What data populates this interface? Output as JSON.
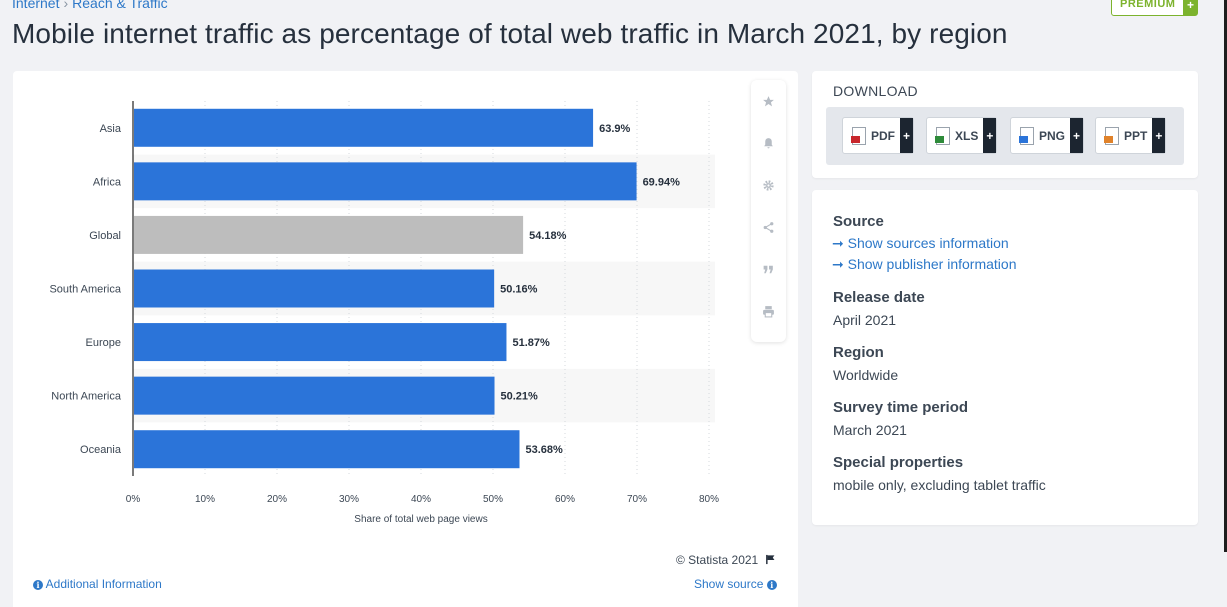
{
  "breadcrumb": {
    "first": "Internet",
    "second": "Reach & Traffic"
  },
  "premium": {
    "label": "PREMIUM",
    "plus": "+"
  },
  "title": "Mobile internet traffic as percentage of total web traffic in March 2021, by region",
  "toolbar": {
    "icons": [
      "star-icon",
      "bell-icon",
      "gear-icon",
      "share-icon",
      "quote-icon",
      "print-icon"
    ]
  },
  "chart_data": {
    "type": "bar",
    "orientation": "horizontal",
    "categories": [
      "Asia",
      "Africa",
      "Global",
      "South America",
      "Europe",
      "North America",
      "Oceania"
    ],
    "values": [
      63.9,
      69.94,
      54.18,
      50.16,
      51.87,
      50.21,
      53.68
    ],
    "data_labels": [
      "63.9%",
      "69.94%",
      "54.18%",
      "50.16%",
      "51.87%",
      "50.21%",
      "53.68%"
    ],
    "highlight": "Global",
    "colors": {
      "bar": "#2b74d9",
      "highlight": "#bdbdbd",
      "band": "#f7f7f7"
    },
    "xlim": [
      0,
      80
    ],
    "xticks": [
      0,
      10,
      20,
      30,
      40,
      50,
      60,
      70,
      80
    ],
    "xtick_labels": [
      "0%",
      "10%",
      "20%",
      "30%",
      "40%",
      "50%",
      "60%",
      "70%",
      "80%"
    ],
    "xlabel": "Share of total web page views",
    "ylabel": "",
    "grid": "vertical dotted"
  },
  "footer": {
    "copyright": "© Statista 2021",
    "additional_info": "Additional Information",
    "show_source": "Show source"
  },
  "download": {
    "title": "DOWNLOAD",
    "buttons": [
      {
        "label": "PDF",
        "color": "#c8262c"
      },
      {
        "label": "XLS",
        "color": "#2e8b3a"
      },
      {
        "label": "PNG",
        "color": "#2b74d9"
      },
      {
        "label": "PPT",
        "color": "#e0822a"
      }
    ]
  },
  "source": {
    "heading": "Source",
    "link1": "Show sources information",
    "link2": "Show publisher information",
    "release_label": "Release date",
    "release_value": "April 2021",
    "region_label": "Region",
    "region_value": "Worldwide",
    "period_label": "Survey time period",
    "period_value": "March 2021",
    "special_label": "Special properties",
    "special_value": "mobile only, excluding tablet traffic"
  }
}
